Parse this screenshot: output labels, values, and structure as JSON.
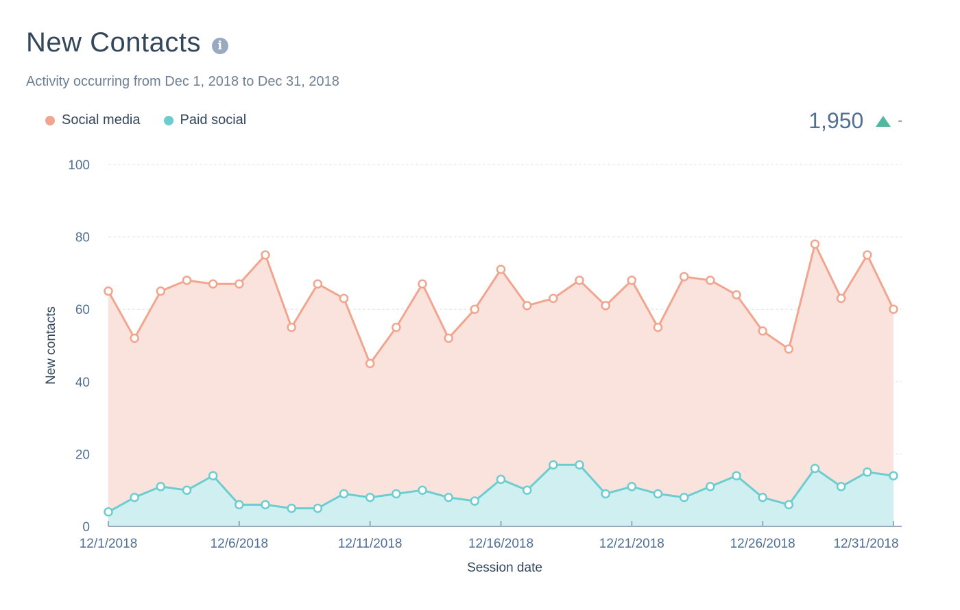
{
  "header": {
    "title": "New Contacts",
    "info_icon": "info-icon",
    "subtitle": "Activity occurring from Dec 1, 2018 to Dec 31, 2018"
  },
  "summary": {
    "total": "1,950",
    "trend_icon": "triangle-up-icon",
    "change": "-",
    "trend_color": "#4fb89f"
  },
  "chart_data": {
    "type": "area",
    "title": "New Contacts",
    "xlabel": "Session date",
    "ylabel": "New contacts",
    "ylim": [
      0,
      100
    ],
    "yticks": [
      0,
      20,
      40,
      60,
      80,
      100
    ],
    "xtick_labels": [
      "12/1/2018",
      "12/6/2018",
      "12/11/2018",
      "12/16/2018",
      "12/21/2018",
      "12/26/2018",
      "12/31/2018"
    ],
    "xtick_indices": [
      0,
      5,
      10,
      15,
      20,
      25,
      30
    ],
    "grid": true,
    "legend_position": "top-left",
    "stacked": false,
    "x": [
      "12/1/2018",
      "12/2/2018",
      "12/3/2018",
      "12/4/2018",
      "12/5/2018",
      "12/6/2018",
      "12/7/2018",
      "12/8/2018",
      "12/9/2018",
      "12/10/2018",
      "12/11/2018",
      "12/12/2018",
      "12/13/2018",
      "12/14/2018",
      "12/15/2018",
      "12/16/2018",
      "12/17/2018",
      "12/18/2018",
      "12/19/2018",
      "12/20/2018",
      "12/21/2018",
      "12/22/2018",
      "12/23/2018",
      "12/24/2018",
      "12/25/2018",
      "12/26/2018",
      "12/27/2018",
      "12/28/2018",
      "12/29/2018",
      "12/30/2018",
      "12/31/2018"
    ],
    "series": [
      {
        "name": "Social media",
        "color": "#f2a58e",
        "fill": "#fae3dd",
        "values": [
          65,
          52,
          65,
          68,
          67,
          67,
          75,
          55,
          67,
          63,
          45,
          55,
          67,
          52,
          60,
          71,
          61,
          63,
          68,
          61,
          68,
          55,
          69,
          68,
          64,
          54,
          49,
          78,
          63,
          75,
          60
        ]
      },
      {
        "name": "Paid social",
        "color": "#6ccdd1",
        "fill": "#cfeff1",
        "values": [
          4,
          8,
          11,
          10,
          14,
          6,
          6,
          5,
          5,
          9,
          8,
          9,
          10,
          8,
          7,
          13,
          10,
          17,
          17,
          9,
          11,
          9,
          8,
          11,
          14,
          8,
          6,
          16,
          11,
          15,
          14
        ]
      }
    ]
  }
}
